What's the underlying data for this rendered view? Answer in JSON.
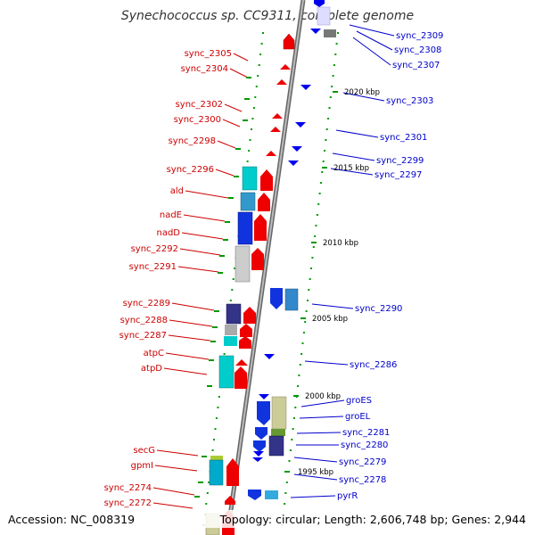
{
  "header": {
    "title": "Synechococcus sp. CC9311, complete genome"
  },
  "footer": {
    "accession": "Accession: NC_008319",
    "topology": "Topology: circular; Length: 2,606,748 bp; Genes: 2,944"
  },
  "colors": {
    "forward_label": "#cc0000",
    "reverse_label": "#0000cc",
    "tick": "#009900",
    "backbone": "#888888"
  },
  "scale_labels": [
    "2020 kbp",
    "2015 kbp",
    "2010 kbp",
    "2005 kbp",
    "2000 kbp",
    "1995 kbp"
  ],
  "forward_genes": [
    "sync_2305",
    "sync_2304",
    "sync_2302",
    "sync_2300",
    "sync_2298",
    "sync_2296",
    "ald",
    "nadE",
    "nadD",
    "sync_2292",
    "sync_2291",
    "sync_2289",
    "sync_2288",
    "sync_2287",
    "atpC",
    "atpD",
    "secG",
    "gpmI",
    "sync_2274",
    "sync_2272"
  ],
  "reverse_genes": [
    "sync_2309",
    "sync_2308",
    "sync_2307",
    "sync_2303",
    "sync_2301",
    "sync_2299",
    "sync_2297",
    "sync_2290",
    "sync_2286",
    "groES",
    "groEL",
    "sync_2281",
    "sync_2280",
    "sync_2279",
    "sync_2278",
    "pyrR"
  ]
}
